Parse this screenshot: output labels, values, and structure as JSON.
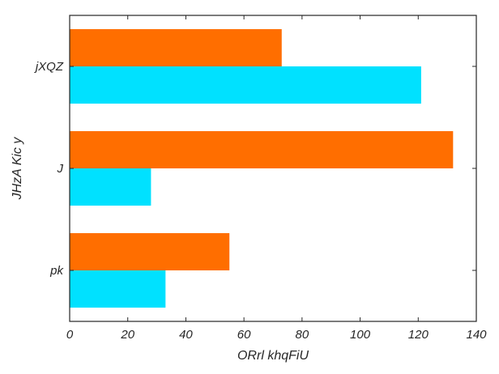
{
  "chart_data": {
    "type": "bar",
    "orientation": "horizontal",
    "title": "",
    "xlabel": "ORrl khqFiU",
    "ylabel": "JHzA Kic y",
    "categories": [
      "pk",
      "J",
      "jXQZ"
    ],
    "series": [
      {
        "color": "#00e1ff",
        "values": [
          33,
          28,
          121
        ]
      },
      {
        "color": "#ff6e00",
        "values": [
          55,
          132,
          73
        ]
      }
    ],
    "xlim": [
      0,
      140
    ],
    "xticks": [
      0,
      20,
      40,
      60,
      80,
      100,
      120,
      140
    ],
    "grid": false,
    "legend": "none"
  }
}
